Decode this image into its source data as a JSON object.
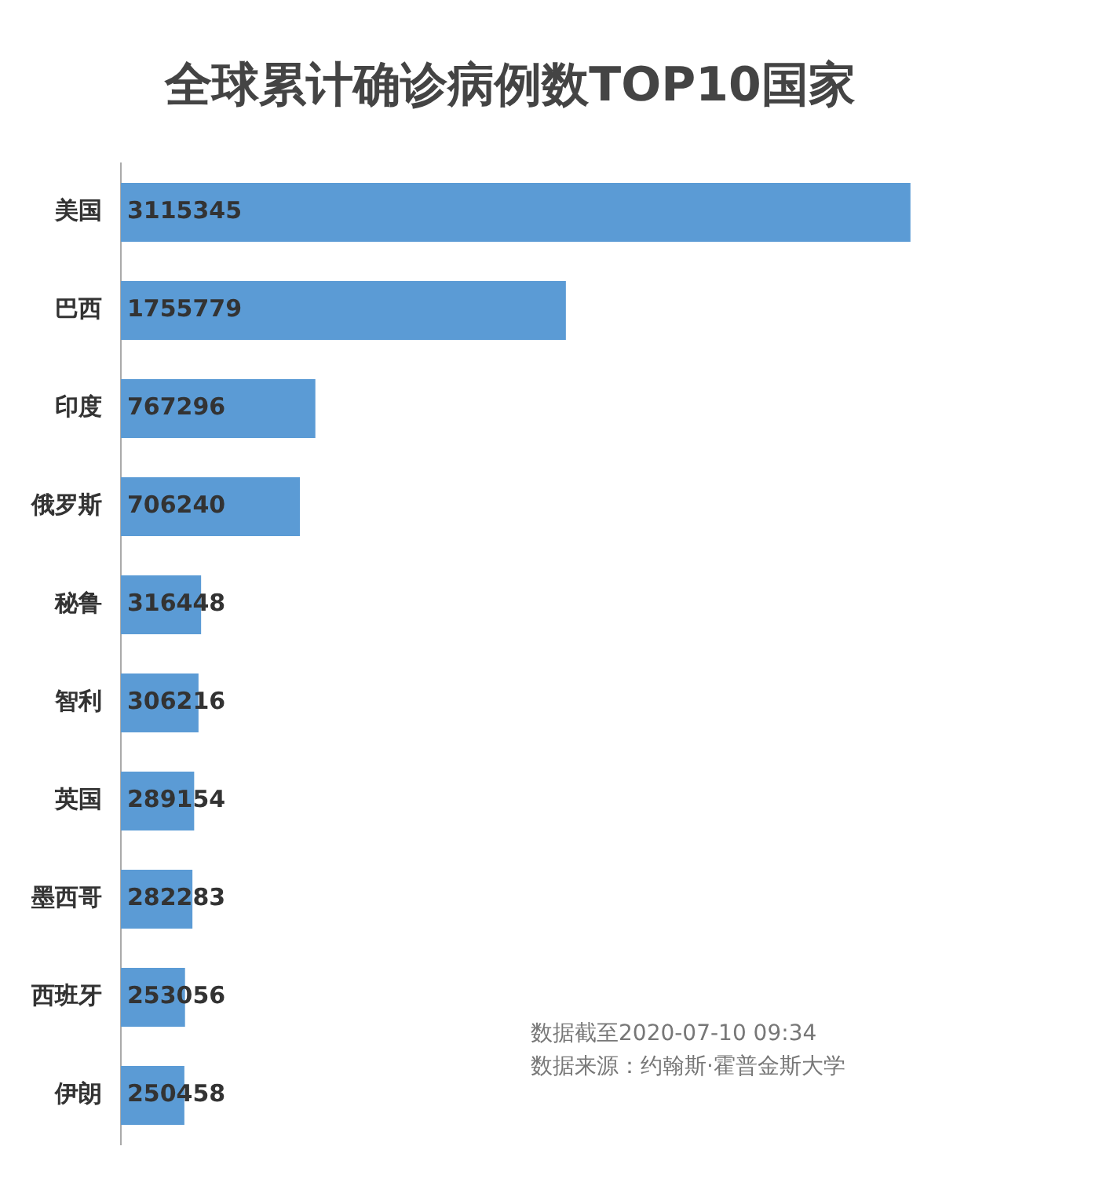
{
  "chart_data": {
    "type": "bar",
    "orientation": "horizontal",
    "title": "全球累计确诊病例数TOP10国家",
    "categories": [
      "美国",
      "巴西",
      "印度",
      "俄罗斯",
      "秘鲁",
      "智利",
      "英国",
      "墨西哥",
      "西班牙",
      "伊朗"
    ],
    "values": [
      3115345,
      1755779,
      767296,
      706240,
      316448,
      306216,
      289154,
      282283,
      253056,
      250458
    ],
    "color": "#5b9bd5",
    "data_labels": true,
    "grid": false,
    "legend": false,
    "tick_labels": "y",
    "annotations": [
      "数据截至2020-07-10 09:34",
      "数据来源：约翰斯·霍普金斯大学"
    ]
  }
}
